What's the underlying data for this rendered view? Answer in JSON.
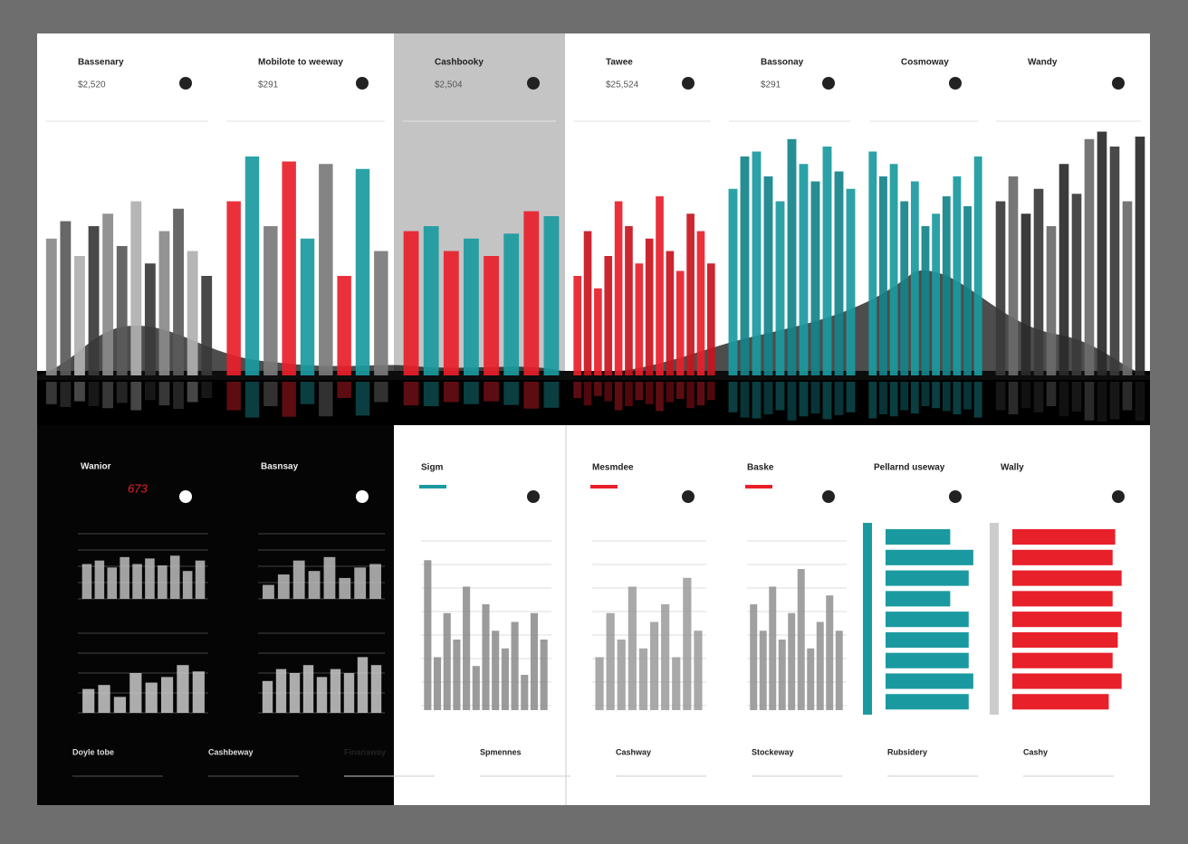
{
  "ylim": [
    0,
    100
  ],
  "top_panels": [
    {
      "title": "Bassenary",
      "value": "$2,520",
      "colors": [
        "#8a8a8a",
        "#5a5a5a",
        "#b0b0b0",
        "#3a3a3a"
      ],
      "bars": [
        55,
        62,
        48,
        60,
        65,
        52,
        70,
        45,
        58,
        67,
        50,
        40
      ]
    },
    {
      "title": "Mobilote to weeway",
      "value": "$291",
      "colors": [
        "#e8202a",
        "#1a9aa0",
        "#7a7a7a"
      ],
      "bars": [
        70,
        88,
        60,
        86,
        55,
        85,
        40,
        83,
        50
      ]
    },
    {
      "title": "Cashbooky",
      "value": "$2,504",
      "colors": [
        "#e8202a",
        "#1a9aa0"
      ],
      "bars": [
        58,
        60,
        50,
        55,
        48,
        57,
        66,
        64
      ]
    },
    {
      "title": "Tawee",
      "value": "$25,524",
      "colors": [
        "#e8202a",
        "#c8141e"
      ],
      "bars": [
        40,
        58,
        35,
        48,
        70,
        60,
        45,
        55,
        72,
        50,
        42,
        65,
        58,
        45
      ]
    },
    {
      "title": "Bassonay",
      "value": "$291",
      "colors": [
        "#1a9aa0",
        "#13838a"
      ],
      "bars": [
        75,
        88,
        90,
        80,
        70,
        95,
        85,
        78,
        92,
        82,
        75
      ]
    },
    {
      "title": "Cosmoway",
      "colors": [
        "#1a9aa0",
        "#13838a"
      ],
      "bars": [
        90,
        80,
        85,
        70,
        78,
        60,
        65,
        72,
        80,
        68,
        88
      ]
    },
    {
      "title": "Wandy",
      "colors": [
        "#3a3a3a",
        "#6a6a6a",
        "#2a2a2a"
      ],
      "bars": [
        70,
        80,
        65,
        75,
        60,
        85,
        73,
        95,
        98,
        92,
        70,
        96
      ]
    }
  ],
  "bottom_dark": [
    {
      "title": "Wanior",
      "value": "673",
      "bars": [
        50,
        55,
        45,
        60,
        50,
        58,
        48,
        62,
        40,
        55
      ],
      "bars2": [
        30,
        35,
        20,
        50,
        38,
        45,
        60,
        52
      ]
    },
    {
      "title": "Basnsay",
      "bars": [
        20,
        35,
        55,
        40,
        60,
        30,
        45,
        50
      ],
      "bars2": [
        40,
        55,
        50,
        60,
        45,
        55,
        50,
        70,
        60
      ]
    }
  ],
  "bottom_light": [
    {
      "title": "Sigm",
      "color": "#8a8a8a",
      "bars": [
        85,
        30,
        55,
        40,
        70,
        25,
        60,
        45,
        35,
        50,
        20,
        55,
        40
      ]
    },
    {
      "title": "Mesmdee",
      "color": "#9a9a9a",
      "bars": [
        30,
        55,
        40,
        70,
        35,
        50,
        60,
        30,
        75,
        45
      ]
    },
    {
      "title": "Baske",
      "color": "#8f8f8f",
      "bars": [
        60,
        45,
        70,
        40,
        55,
        80,
        35,
        50,
        65,
        45
      ]
    }
  ],
  "bottom_hbars": [
    {
      "title": "Pellarnd useway",
      "color": "#1a9aa0",
      "bars": [
        70,
        95,
        90,
        70,
        90,
        90,
        90,
        95,
        90
      ]
    },
    {
      "title": "Wally",
      "color": "#e8202a",
      "bars": [
        80,
        78,
        85,
        78,
        85,
        82,
        78,
        85,
        75
      ]
    }
  ],
  "footer": [
    "Doyle tobe",
    "Cashbeway",
    "Finanaway",
    "Spmennes",
    "Cashway",
    "Stockeway",
    "Rubsidery",
    "Cashy"
  ]
}
